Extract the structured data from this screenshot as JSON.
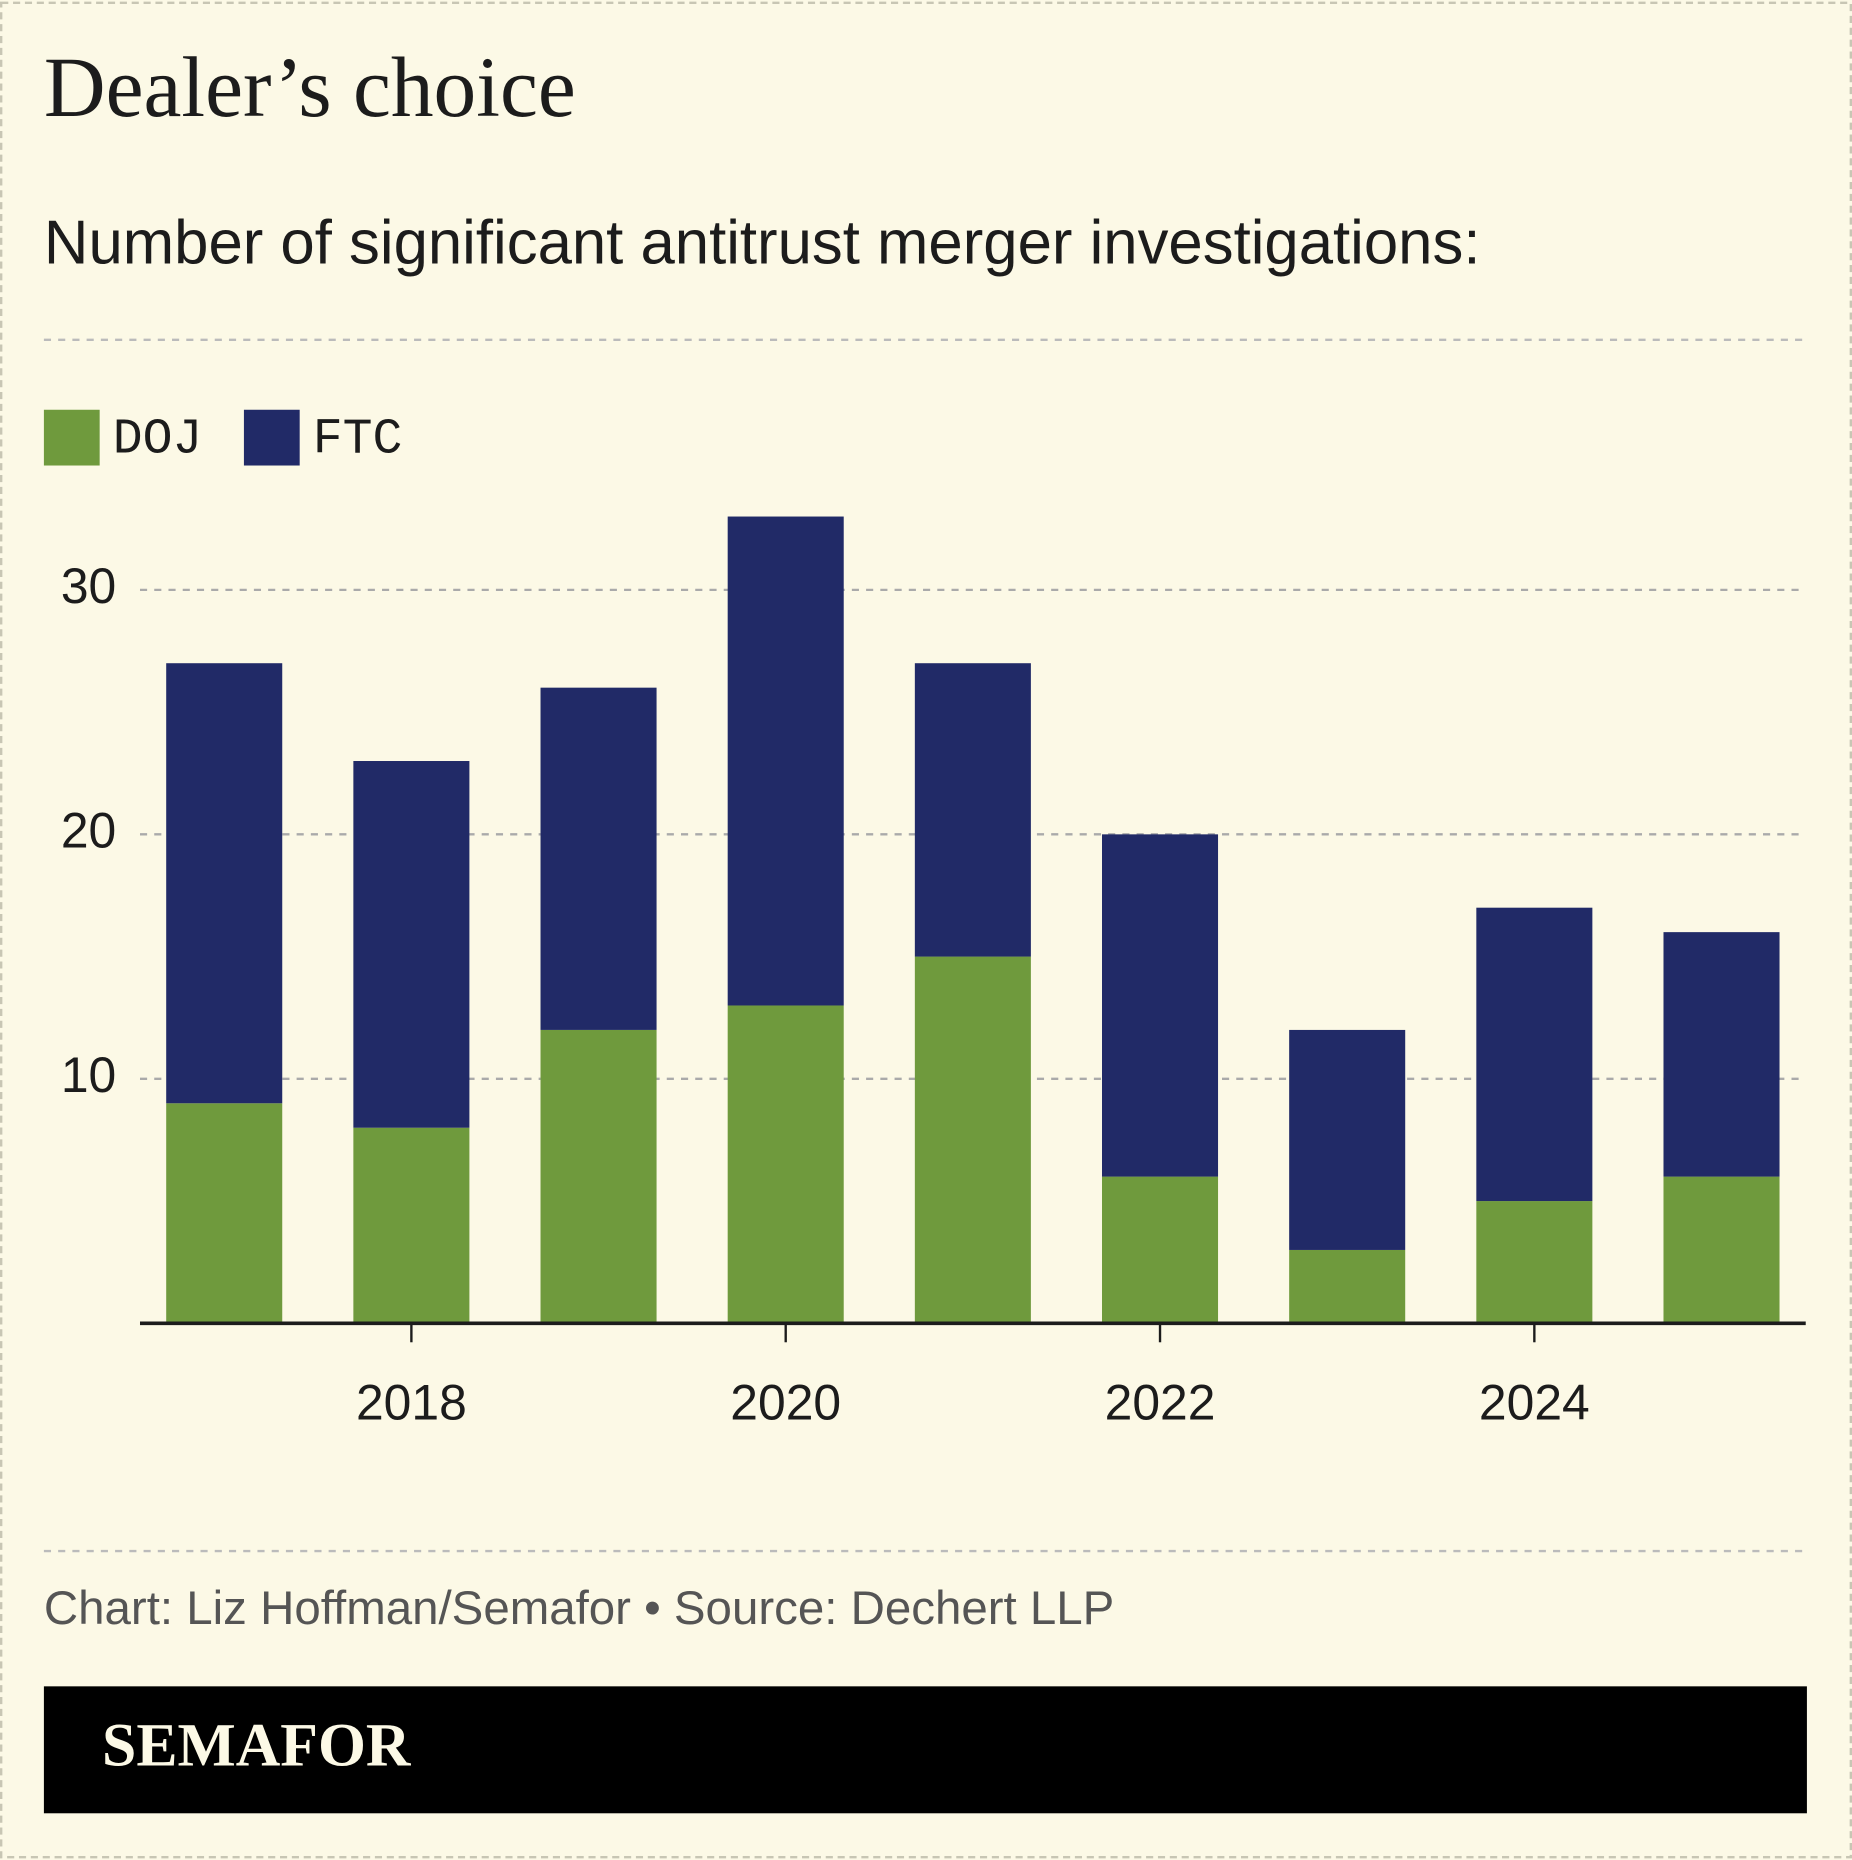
{
  "chart_data": {
    "type": "stacked-bar",
    "title": "Dealer’s choice",
    "subtitle": "Number of significant antitrust merger investigations:",
    "x": [
      2017,
      2018,
      2019,
      2020,
      2021,
      2022,
      2023,
      2024,
      2025
    ],
    "series": [
      {
        "name": "DOJ",
        "color": "#6f9a3d",
        "values": [
          9,
          8,
          12,
          13,
          15,
          6,
          3,
          5,
          6
        ]
      },
      {
        "name": "FTC",
        "color": "#212a67",
        "values": [
          18,
          15,
          14,
          20,
          12,
          14,
          9,
          12,
          10
        ]
      }
    ],
    "xlim": [
      2016.55,
      2025.45
    ],
    "xticks": [
      2018,
      2020,
      2022,
      2024
    ],
    "ylim": [
      0,
      33
    ],
    "yticks": [
      10,
      20,
      30
    ],
    "grid": true,
    "legend": "top-left"
  },
  "footer": {
    "source": "Chart: Liz Hoffman/Semafor • Source: Dechert LLP",
    "brand": "SEMAFOR"
  }
}
